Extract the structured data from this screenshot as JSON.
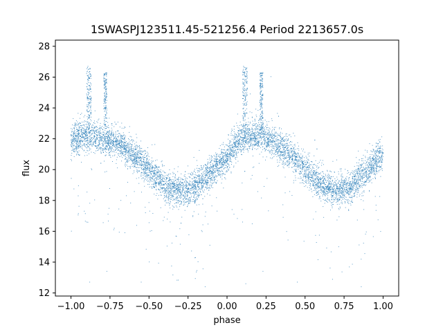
{
  "chart_data": {
    "type": "scatter",
    "title": "1SWASPJ123511.45-521256.4 Period 2213657.0s",
    "xlabel": "phase",
    "ylabel": "flux",
    "xlim": [
      -1.1,
      1.1
    ],
    "ylim": [
      11.8,
      28.4
    ],
    "xticks": [
      -1.0,
      -0.75,
      -0.5,
      -0.25,
      0.0,
      0.25,
      0.5,
      0.75,
      1.0
    ],
    "xtick_labels": [
      "−1.00",
      "−0.75",
      "−0.50",
      "−0.25",
      "0.00",
      "0.25",
      "0.50",
      "0.75",
      "1.00"
    ],
    "yticks": [
      12,
      14,
      16,
      18,
      20,
      22,
      24,
      26,
      28
    ],
    "ytick_labels": [
      "12",
      "14",
      "16",
      "18",
      "20",
      "22",
      "24",
      "26",
      "28"
    ],
    "grid": false,
    "point_color": "#1f77b4",
    "trend": {
      "x": [
        -1.0,
        -0.9,
        -0.8,
        -0.7,
        -0.6,
        -0.5,
        -0.4,
        -0.3,
        -0.2,
        -0.1,
        0.0,
        0.1,
        0.2,
        0.3,
        0.4,
        0.5,
        0.6,
        0.7,
        0.8,
        0.9,
        1.0
      ],
      "y": [
        21.9,
        22.2,
        22.0,
        21.7,
        21.0,
        20.0,
        19.0,
        18.6,
        18.9,
        19.8,
        20.9,
        22.0,
        22.2,
        21.8,
        21.0,
        20.0,
        19.1,
        18.6,
        19.0,
        19.9,
        21.0
      ],
      "scatter": 0.9
    },
    "flares": [
      {
        "x": [
          -0.9,
          -0.87
        ],
        "y": [
          22.5,
          26.7
        ]
      },
      {
        "x": [
          -0.79,
          -0.77
        ],
        "y": [
          22.5,
          26.3
        ]
      },
      {
        "x": [
          0.1,
          0.13
        ],
        "y": [
          22.5,
          26.7
        ]
      },
      {
        "x": [
          0.21,
          0.23
        ],
        "y": [
          22.5,
          26.3
        ]
      }
    ],
    "outliers": [
      {
        "x": -0.88,
        "y": 12.7
      },
      {
        "x": -0.77,
        "y": 13.4
      },
      {
        "x": -0.55,
        "y": 12.7
      },
      {
        "x": 0.12,
        "y": 12.6
      },
      {
        "x": 0.23,
        "y": 13.4
      },
      {
        "x": 0.45,
        "y": 12.7
      },
      {
        "x": 0.86,
        "y": 12.4
      },
      {
        "x": -0.14,
        "y": 12.4
      },
      {
        "x": -0.9,
        "y": 16.6
      },
      {
        "x": 0.1,
        "y": 16.6
      }
    ]
  }
}
